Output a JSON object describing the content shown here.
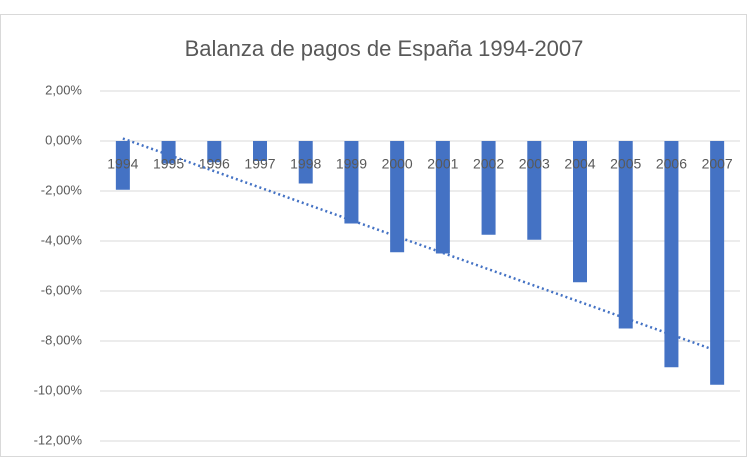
{
  "chart_data": {
    "type": "bar",
    "title": "Balanza de pagos de España 1994-2007",
    "categories": [
      "1994",
      "1995",
      "1996",
      "1997",
      "1998",
      "1999",
      "2000",
      "2001",
      "2002",
      "2003",
      "2004",
      "2005",
      "2006",
      "2007"
    ],
    "values": [
      -1.95,
      -0.9,
      -0.85,
      -0.8,
      -1.7,
      -3.3,
      -4.45,
      -4.5,
      -3.75,
      -3.95,
      -5.65,
      -7.5,
      -9.05,
      -9.75
    ],
    "color": "#4472c4",
    "ylim": [
      -12,
      2
    ],
    "yticks": [
      {
        "value": 2,
        "label": "2,00%"
      },
      {
        "value": 0,
        "label": "0,00%"
      },
      {
        "value": -2,
        "label": "-2,00%"
      },
      {
        "value": -4,
        "label": "-4,00%"
      },
      {
        "value": -6,
        "label": "-6,00%"
      },
      {
        "value": -8,
        "label": "-8,00%"
      },
      {
        "value": -10,
        "label": "-10,00%"
      },
      {
        "value": -12,
        "label": "-12,00%"
      }
    ],
    "grid": true,
    "trendline": true
  }
}
